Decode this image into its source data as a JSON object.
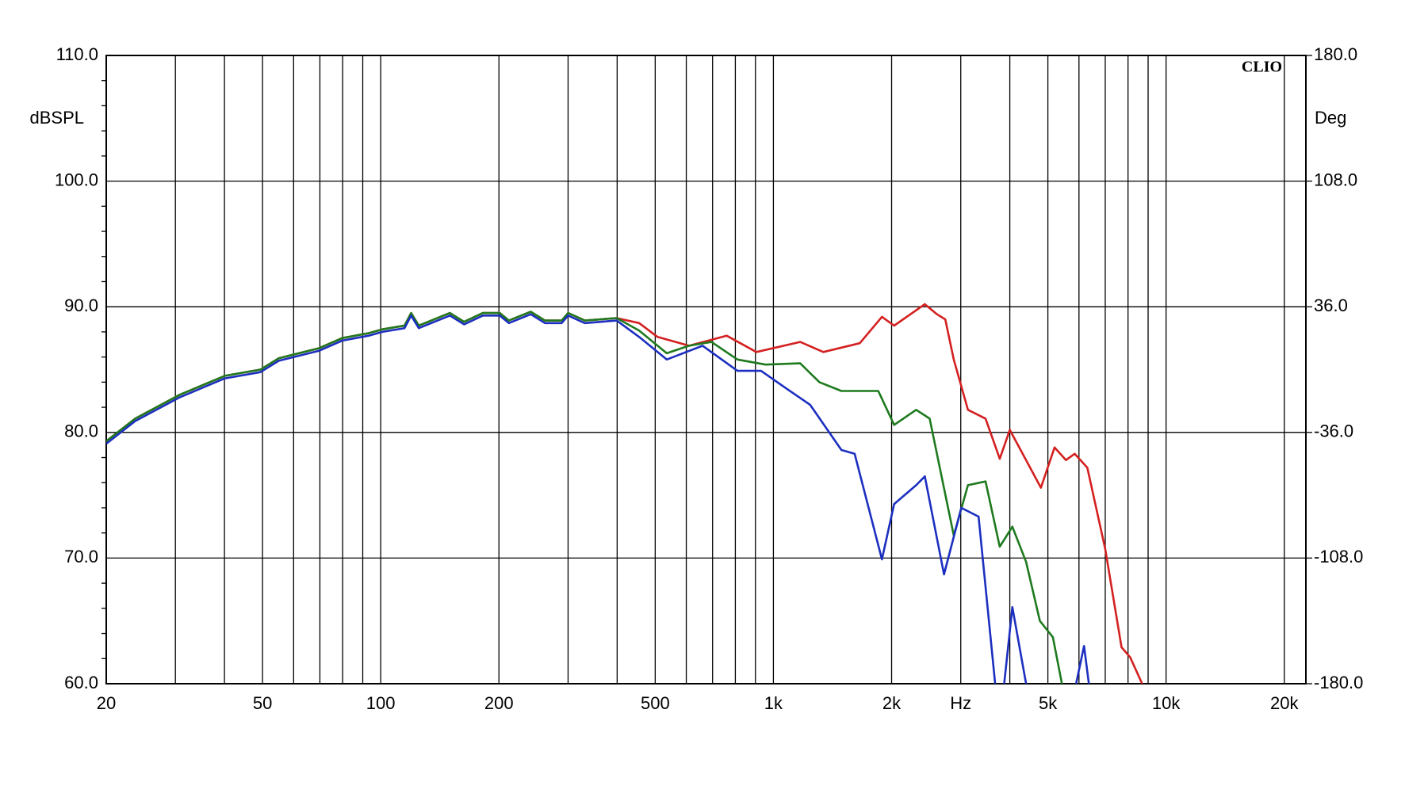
{
  "chart_data": {
    "type": "line",
    "xscale": "log",
    "grid": true,
    "brand": "CLIO",
    "ylabel": "dBSPL",
    "y2label": "Deg",
    "xlim": [
      20,
      22700
    ],
    "xticks": [
      20,
      50,
      100,
      200,
      500,
      {
        "value": 1000,
        "label": "1k"
      },
      {
        "value": 2000,
        "label": "2k"
      },
      {
        "value": 3000,
        "label": "Hz"
      },
      {
        "value": 5000,
        "label": "5k"
      },
      {
        "value": 10000,
        "label": "10k"
      },
      {
        "value": 20000,
        "label": "20k"
      }
    ],
    "xgrid": [
      30,
      40,
      60,
      70,
      80,
      90,
      300,
      400,
      600,
      700,
      800,
      900,
      4000,
      6000,
      7000,
      8000,
      9000
    ],
    "ylim": [
      60,
      110
    ],
    "yticks": [
      {
        "value": 60,
        "label": "60.0"
      },
      {
        "value": 70,
        "label": "70.0"
      },
      {
        "value": 80,
        "label": "80.0"
      },
      {
        "value": 90,
        "label": "90.0"
      },
      {
        "value": 100,
        "label": "100.0"
      },
      {
        "value": 110,
        "label": "110.0"
      }
    ],
    "y2lim": [
      -180,
      180
    ],
    "y2ticks": [
      {
        "value": -180,
        "label": "-180.0"
      },
      {
        "value": -108,
        "label": "-108.0"
      },
      {
        "value": -36,
        "label": "-36.0"
      },
      {
        "value": 36,
        "label": "36.0"
      },
      {
        "value": 108,
        "label": "108.0"
      },
      {
        "value": 180,
        "label": "180.0"
      }
    ],
    "series": [
      {
        "color": "#d42020",
        "x": [
          20,
          23.7,
          30.8,
          40.1,
          49.4,
          55,
          69.7,
          79.7,
          93.2,
          101,
          115,
          119.5,
          125,
          150,
          163,
          182,
          201,
          212,
          241,
          262,
          289,
          300,
          331,
          399,
          455,
          507,
          610,
          760,
          905,
          1170,
          1340,
          1660,
          1890,
          2030,
          2430,
          2610,
          2740,
          2880,
          3130,
          3470,
          3770,
          4000,
          4800,
          5200,
          5560,
          5850,
          6300,
          7000,
          7700,
          8100,
          8690
        ],
        "values": [
          79.3,
          81.1,
          83,
          84.5,
          85,
          85.9,
          86.7,
          87.5,
          87.9,
          88.2,
          88.5,
          89.5,
          88.5,
          89.5,
          88.8,
          89.5,
          89.5,
          88.9,
          89.6,
          88.9,
          88.9,
          89.5,
          88.9,
          89.1,
          88.7,
          87.6,
          86.9,
          87.7,
          86.4,
          87.2,
          86.4,
          87.1,
          89.2,
          88.5,
          90.2,
          89.4,
          89,
          85.8,
          81.8,
          81.1,
          77.9,
          80.2,
          75.6,
          78.8,
          77.8,
          78.3,
          77.2,
          70.7,
          62.9,
          62.1,
          60
        ]
      },
      {
        "color": "#1e7a1e",
        "x": [
          20,
          23.7,
          30.8,
          40.1,
          49.4,
          55,
          69.7,
          79.7,
          93.2,
          101,
          115,
          119.5,
          125,
          150,
          163,
          182,
          201,
          212,
          241,
          262,
          289,
          300,
          331,
          399,
          455,
          535,
          610,
          695,
          810,
          955,
          1170,
          1310,
          1490,
          1850,
          2030,
          2310,
          2500,
          2880,
          3130,
          3470,
          3770,
          4060,
          4400,
          4770,
          5150,
          5430
        ],
        "values": [
          79.3,
          81.1,
          83,
          84.5,
          85,
          85.9,
          86.7,
          87.5,
          87.9,
          88.2,
          88.5,
          89.5,
          88.5,
          89.5,
          88.8,
          89.5,
          89.5,
          88.9,
          89.6,
          88.9,
          88.9,
          89.5,
          88.9,
          89.1,
          88.1,
          86.3,
          86.9,
          87.2,
          85.8,
          85.4,
          85.5,
          84,
          83.3,
          83.3,
          80.6,
          81.8,
          81.1,
          71.8,
          75.8,
          76.1,
          70.9,
          72.5,
          69.7,
          65,
          63.7,
          60
        ]
      },
      {
        "color": "#1c2fc0",
        "x": [
          20,
          23.7,
          30.8,
          40.1,
          49.4,
          55,
          69.7,
          79.7,
          93.2,
          101,
          115,
          119.5,
          125,
          150,
          163,
          182,
          201,
          212,
          241,
          262,
          289,
          300,
          331,
          399,
          455,
          535,
          660,
          810,
          930,
          1090,
          1240,
          1490,
          1610,
          1890,
          2030,
          2310,
          2430,
          2720,
          3010,
          3330,
          3670,
          null,
          3870,
          4060,
          4400,
          null,
          5900,
          6180,
          6360
        ],
        "values": [
          79.1,
          80.9,
          82.8,
          84.3,
          84.8,
          85.7,
          86.5,
          87.3,
          87.7,
          88,
          88.3,
          89.3,
          88.3,
          89.3,
          88.6,
          89.3,
          89.3,
          88.7,
          89.4,
          88.7,
          88.7,
          89.3,
          88.7,
          88.9,
          87.6,
          85.8,
          86.9,
          84.9,
          84.9,
          83.4,
          82.2,
          78.6,
          78.3,
          69.9,
          74.3,
          75.8,
          76.5,
          68.7,
          74,
          73.3,
          60,
          null,
          60,
          66.1,
          60,
          null,
          60,
          63,
          60
        ]
      }
    ]
  }
}
